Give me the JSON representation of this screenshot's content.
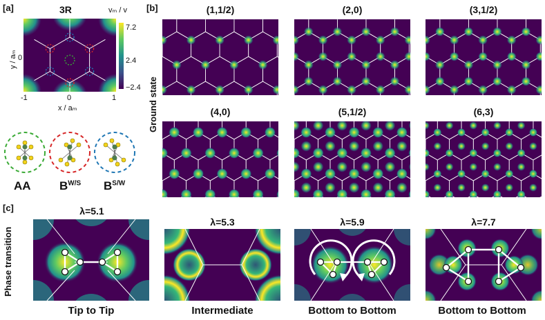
{
  "panel_a": {
    "tag": "[a]",
    "title": "3R",
    "cbar_label": "vₘ / v",
    "cbar_ticks": [
      "7.2",
      "2.4",
      "−2.4"
    ],
    "ylabel": "y / aₘ",
    "xlabel": "x / aₘ",
    "y_tick": "0",
    "x_ticks": [
      "-1",
      "0",
      "1"
    ],
    "stackings": [
      {
        "label": "AA",
        "sup": "",
        "ring_color": "#3aaa35"
      },
      {
        "label": "B",
        "sup": "W/S",
        "ring_color": "#d62728"
      },
      {
        "label": "B",
        "sup": "S/W",
        "ring_color": "#1f77b4"
      }
    ]
  },
  "panel_b": {
    "tag": "[b]",
    "side_label": "Ground state",
    "titles": [
      "(1,1/2)",
      "(2,0)",
      "(3,1/2)",
      "(4,0)",
      "(5,1/2)",
      "(6,3)"
    ]
  },
  "panel_c": {
    "tag": "[c]",
    "side_label": "Phase transition",
    "titles": [
      "λ=5.1",
      "λ=5.3",
      "λ=5.9",
      "λ=7.7"
    ],
    "captions": [
      "Tip to Tip",
      "Intermediate",
      "Bottom to Bottom",
      "Bottom to Bottom"
    ]
  },
  "colors": {
    "bg": "#440154",
    "mid": "#21918c",
    "high": "#fde725"
  }
}
